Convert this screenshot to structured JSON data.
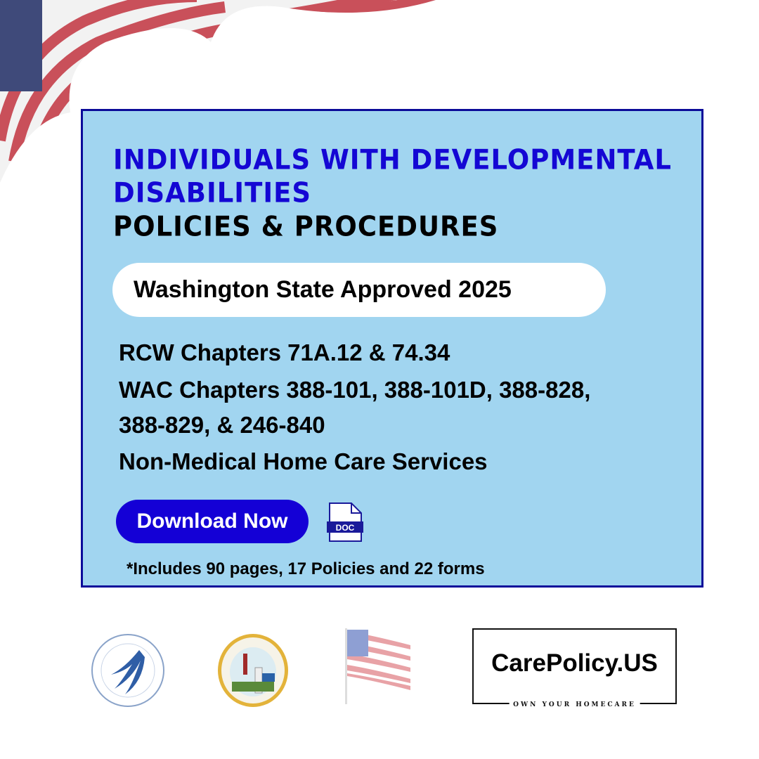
{
  "header": {
    "title_line1": "INDIVIDUALS WITH DEVELOPMENTAL",
    "title_line2": "DISABILITIES",
    "subtitle": "POLICIES & PROCEDURES"
  },
  "badge": "Washington State Approved 2025",
  "details": [
    "RCW Chapters 71A.12 & 74.34",
    "WAC Chapters 388-101, 388-101D, 388-828,",
    "388-829, & 246-840",
    "Non-Medical Home Care Services"
  ],
  "download_label": "Download Now",
  "doc_icon_label": "DOC",
  "note": "*Includes 90 pages, 17 Policies and 22 forms",
  "brand": {
    "name": "CarePolicy.US",
    "tagline": "OWN YOUR HOMECARE"
  },
  "logos": [
    "hhs-seal",
    "dc-seal",
    "us-flag",
    "carepolicy-logo"
  ],
  "colors": {
    "panel": "#a1d5f0",
    "accent": "#1400d6",
    "border": "#0b0b99"
  }
}
